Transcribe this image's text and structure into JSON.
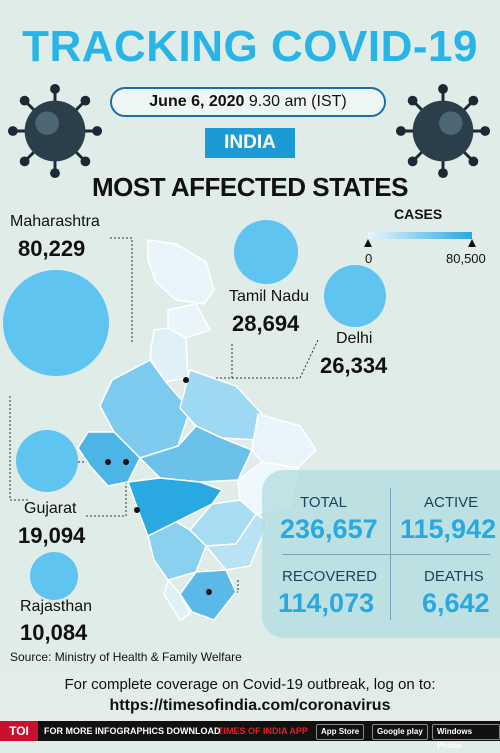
{
  "header": {
    "title": "TRACKING COVID-19",
    "date": "June 6, 2020",
    "time": "9.30 am (IST)",
    "country": "INDIA",
    "subtitle": "MOST AFFECTED STATES"
  },
  "legend": {
    "title": "CASES",
    "min": "0",
    "max": "80,500",
    "colors": [
      "#eaf5fb",
      "#29a8e2"
    ]
  },
  "states": [
    {
      "name": "Maharashtra",
      "value": "80,229",
      "cases": 80229
    },
    {
      "name": "Tamil Nadu",
      "value": "28,694",
      "cases": 28694
    },
    {
      "name": "Delhi",
      "value": "26,334",
      "cases": 26334
    },
    {
      "name": "Gujarat",
      "value": "19,094",
      "cases": 19094
    },
    {
      "name": "Rajasthan",
      "value": "10,084",
      "cases": 10084
    }
  ],
  "stats": {
    "total_label": "TOTAL",
    "total": "236,657",
    "active_label": "ACTIVE",
    "active": "115,942",
    "recovered_label": "RECOVERED",
    "recovered": "114,073",
    "deaths_label": "DEATHS",
    "deaths": "6,642"
  },
  "source": "Source: Ministry of Health & Family Welfare",
  "footer": {
    "line1": "For complete coverage on Covid-19 outbreak, log on to:",
    "url": "https://timesofindia.com/coronavirus",
    "logo": "TOI",
    "promo_a": "FOR MORE INFOGRAPHICS DOWNLOAD",
    "promo_b": "TIMES OF INDIA APP",
    "store1": "App Store",
    "store2": "Google play",
    "store3": "Windows Phone"
  },
  "colors": {
    "title": "#29b4e8",
    "bubble": "#5fc4ef",
    "background": "#dfece8",
    "stat_value": "#29a8e2"
  }
}
